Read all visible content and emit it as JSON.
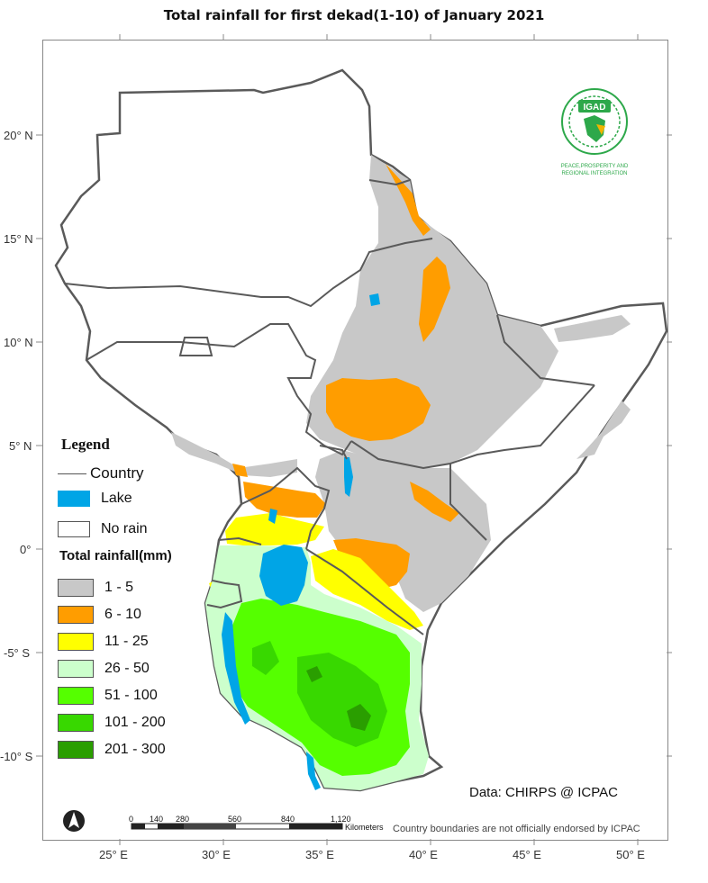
{
  "title": "Total rainfall for  first  dekad(1-10)  of January 2021",
  "axes": {
    "lat_labels": [
      {
        "value": 20,
        "label": "20° N"
      },
      {
        "value": 15,
        "label": "15° N"
      },
      {
        "value": 10,
        "label": "10° N"
      },
      {
        "value": 5,
        "label": "5° N"
      },
      {
        "value": 0,
        "label": "0°"
      },
      {
        "value": -5,
        "label": "-5° S"
      },
      {
        "value": -10,
        "label": "-10° S"
      }
    ],
    "lon_labels": [
      {
        "value": 25,
        "label": "25° E"
      },
      {
        "value": 30,
        "label": "30° E"
      },
      {
        "value": 35,
        "label": "35° E"
      },
      {
        "value": 40,
        "label": "40° E"
      },
      {
        "value": 45,
        "label": "45° E"
      },
      {
        "value": 50,
        "label": "50° E"
      }
    ]
  },
  "legend": {
    "title": "Legend",
    "country_label": "Country",
    "lake_label": "Lake",
    "no_rain_label": "No rain",
    "rainfall_title": "Total rainfall(mm)",
    "classes": [
      {
        "label": "1 - 5",
        "color": "#c8c8c8"
      },
      {
        "label": "6 - 10",
        "color": "#ff9d00"
      },
      {
        "label": "11 - 25",
        "color": "#ffff00"
      },
      {
        "label": "26 - 50",
        "color": "#ccffcc"
      },
      {
        "label": "51 - 100",
        "color": "#55ff00"
      },
      {
        "label": "101 - 200",
        "color": "#38d800"
      },
      {
        "label": "201 - 300",
        "color": "#2a9e00"
      }
    ],
    "lake_color": "#00a5e6"
  },
  "logo": {
    "name": "IGAD",
    "tagline_1": "PEACE,PROSPERITY AND",
    "tagline_2": "REGIONAL INTEGRATION"
  },
  "scale_bar": {
    "ticks": [
      "0",
      "140",
      "280",
      "560",
      "840",
      "1,120"
    ],
    "unit": "Kilometers"
  },
  "credit": "Data: CHIRPS @ ICPAC",
  "disclaimer": "Country boundaries are not officially endorsed by ICPAC"
}
